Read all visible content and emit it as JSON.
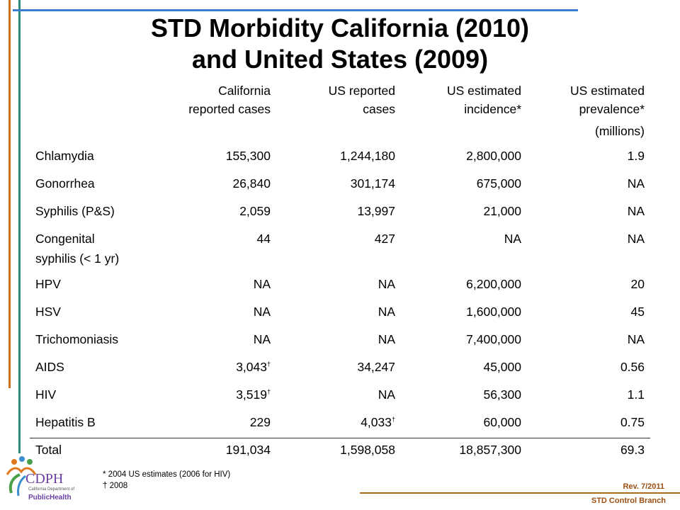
{
  "title": {
    "line1": "STD Morbidity California (2010)",
    "line2": "and United States (2009)"
  },
  "columns": [
    {
      "line1": "California",
      "line2": "reported cases"
    },
    {
      "line1": "US reported",
      "line2": "cases"
    },
    {
      "line1": "US estimated",
      "line2": "incidence*"
    },
    {
      "line1": "US estimated",
      "line2": "prevalence*",
      "line3": "(millions)"
    }
  ],
  "rows": [
    {
      "name": "Chlamydia",
      "values": [
        "155,300",
        "1,244,180",
        "2,800,000",
        "1.9"
      ]
    },
    {
      "name": "Gonorrhea",
      "values": [
        "26,840",
        "301,174",
        "675,000",
        "NA"
      ]
    },
    {
      "name": "Syphilis (P&S)",
      "values": [
        "2,059",
        "13,997",
        "21,000",
        "NA"
      ]
    },
    {
      "name": "Congenital",
      "name2": "syphilis (< 1 yr)",
      "values": [
        "44",
        "427",
        "NA",
        "NA"
      ]
    },
    {
      "name": "HPV",
      "values": [
        "NA",
        "NA",
        "6,200,000",
        "20"
      ]
    },
    {
      "name": "HSV",
      "values": [
        "NA",
        "NA",
        "1,600,000",
        "45"
      ]
    },
    {
      "name": "Trichomoniasis",
      "values": [
        "NA",
        "NA",
        "7,400,000",
        "NA"
      ]
    },
    {
      "name": "AIDS",
      "values": [
        "3,043",
        "34,247",
        "45,000",
        "0.56"
      ],
      "dagger": [
        0
      ]
    },
    {
      "name": "HIV",
      "values": [
        "3,519",
        "NA",
        "56,300",
        "1.1"
      ],
      "dagger": [
        0
      ]
    },
    {
      "name": "Hepatitis B",
      "values": [
        "229",
        "4,033",
        "60,000",
        "0.75"
      ],
      "dagger": [
        1
      ]
    }
  ],
  "total": {
    "name": "Total",
    "values": [
      "191,034",
      "1,598,058",
      "18,857,300",
      "69.3"
    ]
  },
  "dagger_mark": "†",
  "footnotes": {
    "star": "* 2004 US estimates (2006 for HIV)",
    "dagger": "† 2008"
  },
  "footer": {
    "revision": "Rev. 7/2011",
    "branch": "STD Control Branch"
  },
  "logo": {
    "acronym": "CDPH",
    "subtitle": "California Department of",
    "name": "PublicHealth"
  },
  "colors": {
    "orange_line": "#c9701e",
    "teal_line": "#2d8c7e",
    "blue_line": "#3a7fd0",
    "footer_text": "#9a4e12"
  }
}
